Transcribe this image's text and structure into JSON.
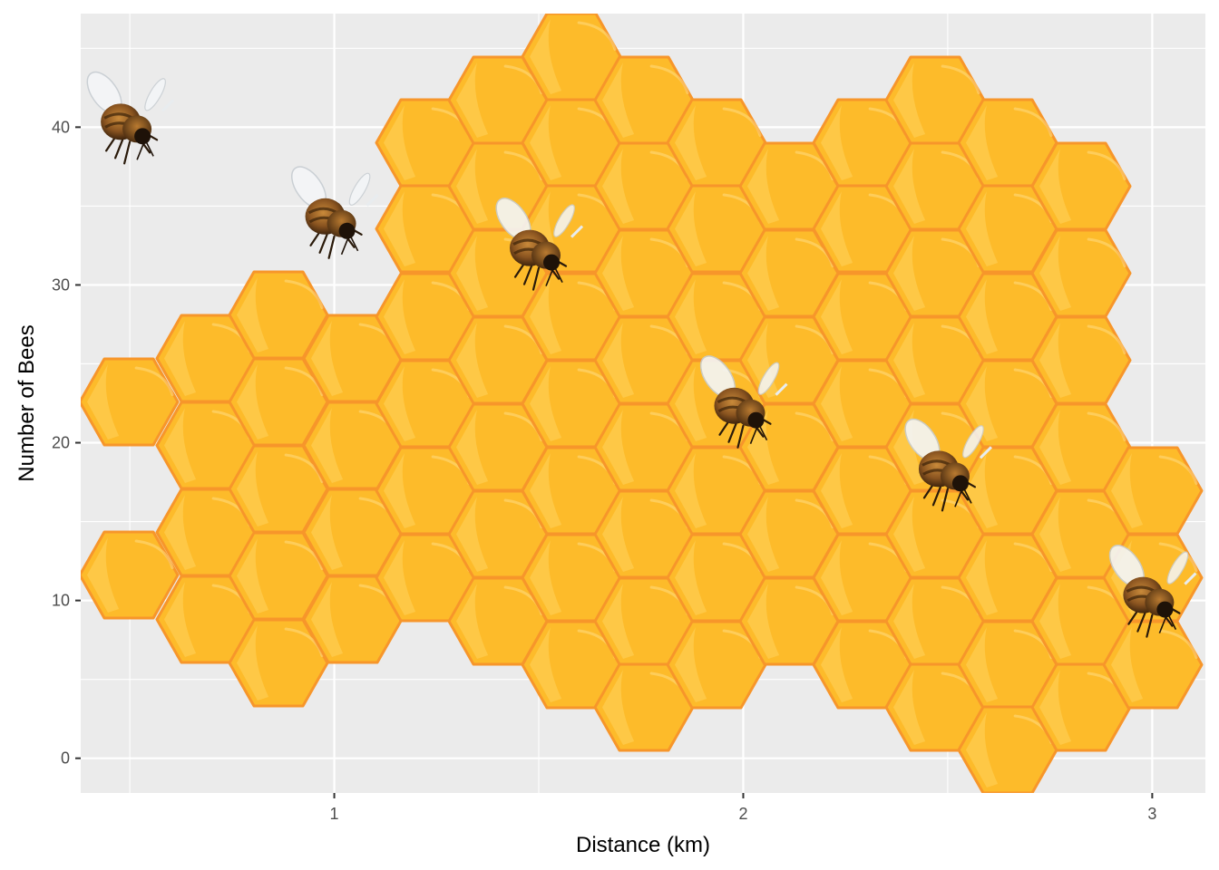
{
  "chart_data": {
    "type": "scatter",
    "title": "",
    "xlabel": "Distance (km)",
    "ylabel": "Number of Bees",
    "xlim": [
      0.38,
      3.13
    ],
    "ylim": [
      -2.2,
      47.2
    ],
    "x_ticks": [
      1,
      2,
      3
    ],
    "y_ticks": [
      0,
      10,
      20,
      30,
      40
    ],
    "grid": true,
    "legend": "none",
    "background_image": "honeycomb",
    "marker": "bee-icon",
    "points": [
      {
        "x": 0.5,
        "y": 40
      },
      {
        "x": 1.0,
        "y": 34
      },
      {
        "x": 1.5,
        "y": 32
      },
      {
        "x": 2.0,
        "y": 22
      },
      {
        "x": 2.5,
        "y": 18
      },
      {
        "x": 3.0,
        "y": 10
      }
    ]
  },
  "colors": {
    "panel": "#ebebeb",
    "grid_major": "#ffffff",
    "honey_fill": "#fdbb2a",
    "honey_edge": "#f7962a",
    "honey_highlight": "#ffd45c"
  }
}
